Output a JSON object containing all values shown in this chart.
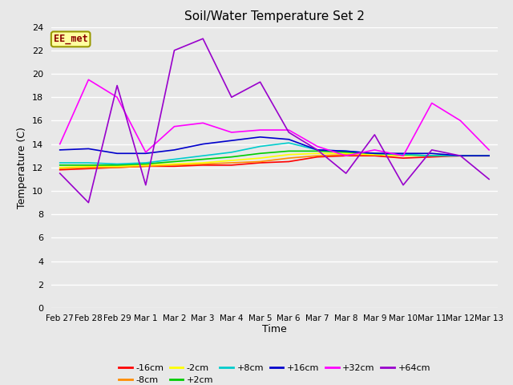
{
  "title": "Soil/Water Temperature Set 2",
  "xlabel": "Time",
  "ylabel": "Temperature (C)",
  "ylim": [
    0,
    24
  ],
  "yticks": [
    0,
    2,
    4,
    6,
    8,
    10,
    12,
    14,
    16,
    18,
    20,
    22,
    24
  ],
  "x_labels": [
    "Feb 27",
    "Feb 28",
    "Feb 29",
    "Mar 1",
    "Mar 2",
    "Mar 3",
    "Mar 4",
    "Mar 5",
    "Mar 6",
    "Mar 7",
    "Mar 8",
    "Mar 9",
    "Mar 10",
    "Mar 11",
    "Mar 12",
    "Mar 13"
  ],
  "annotation_text": "EE_met",
  "annotation_color": "#8B0000",
  "annotation_bg": "#FFFFA0",
  "annotation_edge": "#999900",
  "background_color": "#E8E8E8",
  "plot_bg": "#E8E8E8",
  "grid_color": "#FFFFFF",
  "series_order": [
    "-16cm",
    "-8cm",
    "-2cm",
    "+2cm",
    "+8cm",
    "+16cm",
    "+32cm",
    "+64cm"
  ],
  "series": {
    "-16cm": {
      "color": "#FF0000",
      "values": [
        11.8,
        11.9,
        12.0,
        12.1,
        12.1,
        12.2,
        12.2,
        12.4,
        12.5,
        12.9,
        13.0,
        13.0,
        12.8,
        12.9,
        13.0,
        13.0
      ]
    },
    "-8cm": {
      "color": "#FF8C00",
      "values": [
        11.9,
        12.0,
        12.0,
        12.1,
        12.2,
        12.3,
        12.4,
        12.5,
        12.8,
        13.0,
        13.1,
        13.1,
        13.0,
        13.0,
        13.0,
        13.0
      ]
    },
    "-2cm": {
      "color": "#FFFF00",
      "values": [
        12.0,
        12.1,
        12.1,
        12.2,
        12.3,
        12.4,
        12.6,
        12.8,
        13.1,
        13.2,
        13.2,
        13.1,
        13.0,
        13.0,
        13.0,
        13.0
      ]
    },
    "+2cm": {
      "color": "#00CC00",
      "values": [
        12.2,
        12.2,
        12.2,
        12.3,
        12.5,
        12.7,
        12.9,
        13.2,
        13.4,
        13.4,
        13.3,
        13.2,
        13.1,
        13.0,
        13.0,
        13.0
      ]
    },
    "+8cm": {
      "color": "#00CCCC",
      "values": [
        12.4,
        12.4,
        12.3,
        12.4,
        12.7,
        13.0,
        13.3,
        13.8,
        14.1,
        13.5,
        13.4,
        13.2,
        13.1,
        13.0,
        13.0,
        13.0
      ]
    },
    "+16cm": {
      "color": "#0000CC",
      "values": [
        13.5,
        13.6,
        13.2,
        13.2,
        13.5,
        14.0,
        14.3,
        14.6,
        14.4,
        13.5,
        13.4,
        13.2,
        13.2,
        13.2,
        13.0,
        13.0
      ]
    },
    "+32cm": {
      "color": "#FF00FF",
      "values": [
        14.0,
        19.5,
        18.0,
        13.3,
        15.5,
        15.8,
        15.0,
        15.2,
        15.2,
        13.8,
        13.0,
        13.5,
        13.0,
        17.5,
        16.0,
        13.5
      ]
    },
    "+64cm": {
      "color": "#9900CC",
      "values": [
        11.5,
        9.0,
        19.0,
        10.5,
        22.0,
        23.0,
        18.0,
        19.3,
        15.0,
        13.5,
        11.5,
        14.8,
        10.5,
        13.5,
        13.0,
        11.0
      ]
    }
  },
  "legend": [
    [
      "-16cm",
      "#FF0000"
    ],
    [
      "-8cm",
      "#FF8C00"
    ],
    [
      "-2cm",
      "#FFFF00"
    ],
    [
      "+2cm",
      "#00CC00"
    ],
    [
      "+8cm",
      "#00CCCC"
    ],
    [
      "+16cm",
      "#0000CC"
    ],
    [
      "+32cm",
      "#FF00FF"
    ],
    [
      "+64cm",
      "#9900CC"
    ]
  ]
}
